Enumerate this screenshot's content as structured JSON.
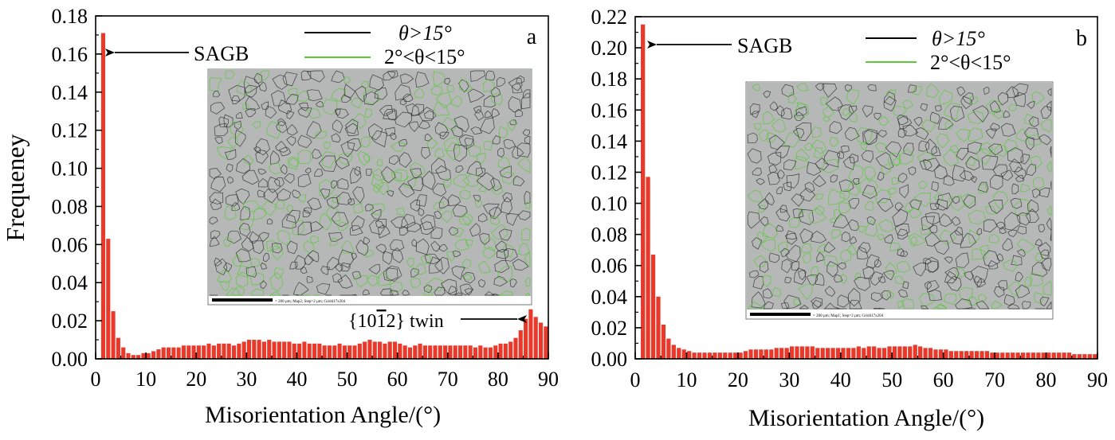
{
  "chart_data": [
    {
      "type": "bar",
      "panel_letter": "a",
      "xlabel": "Misorientation Angle/(°)",
      "ylabel": "Frequeney",
      "xlim": [
        0,
        90
      ],
      "ylim": [
        0,
        0.18
      ],
      "xticks": [
        "0",
        "10",
        "20",
        "30",
        "40",
        "50",
        "60",
        "70",
        "80",
        "90"
      ],
      "yticks": [
        "0.00",
        "0.02",
        "0.04",
        "0.06",
        "0.08",
        "0.10",
        "0.12",
        "0.14",
        "0.16",
        "0.18"
      ],
      "bar_color": "#e8392a",
      "bin_width": 1,
      "x": [
        2,
        3,
        4,
        5,
        6,
        7,
        8,
        9,
        10,
        11,
        12,
        13,
        14,
        15,
        16,
        17,
        18,
        19,
        20,
        21,
        22,
        23,
        24,
        25,
        26,
        27,
        28,
        29,
        30,
        31,
        32,
        33,
        34,
        35,
        36,
        37,
        38,
        39,
        40,
        41,
        42,
        43,
        44,
        45,
        46,
        47,
        48,
        49,
        50,
        51,
        52,
        53,
        54,
        55,
        56,
        57,
        58,
        59,
        60,
        61,
        62,
        63,
        64,
        65,
        66,
        67,
        68,
        69,
        70,
        71,
        72,
        73,
        74,
        75,
        76,
        77,
        78,
        79,
        80,
        81,
        82,
        83,
        84,
        85,
        86,
        87,
        88,
        89,
        90
      ],
      "values": [
        0.171,
        0.063,
        0.025,
        0.011,
        0.006,
        0.003,
        0.002,
        0.002,
        0.003,
        0.003,
        0.004,
        0.005,
        0.006,
        0.006,
        0.006,
        0.006,
        0.007,
        0.007,
        0.007,
        0.007,
        0.007,
        0.008,
        0.007,
        0.008,
        0.008,
        0.008,
        0.007,
        0.008,
        0.009,
        0.01,
        0.01,
        0.01,
        0.009,
        0.01,
        0.009,
        0.009,
        0.009,
        0.009,
        0.008,
        0.008,
        0.009,
        0.008,
        0.008,
        0.008,
        0.007,
        0.007,
        0.007,
        0.008,
        0.007,
        0.007,
        0.007,
        0.008,
        0.009,
        0.01,
        0.009,
        0.009,
        0.008,
        0.009,
        0.009,
        0.008,
        0.007,
        0.006,
        0.007,
        0.008,
        0.007,
        0.007,
        0.007,
        0.007,
        0.007,
        0.007,
        0.007,
        0.007,
        0.007,
        0.007,
        0.006,
        0.007,
        0.006,
        0.006,
        0.007,
        0.008,
        0.008,
        0.009,
        0.011,
        0.015,
        0.021,
        0.026,
        0.022,
        0.019,
        0.017
      ],
      "annotations": [
        {
          "text": "SAGB"
        },
        {
          "text_pre": "{10",
          "text_bar": "1",
          "text_post": "2} twin"
        }
      ],
      "legend": [
        {
          "label": "θ>15°",
          "color": "#000000"
        },
        {
          "label": "2°<θ<15°",
          "color": "#5cc93b"
        }
      ],
      "inset": {
        "caption": "= 200 µm; Map2; Step=2 µm; Grid417x204"
      }
    },
    {
      "type": "bar",
      "panel_letter": "b",
      "xlabel": "Misorientation Angle/(°)",
      "ylabel": "",
      "xlim": [
        0,
        90
      ],
      "ylim": [
        0,
        0.22
      ],
      "xticks": [
        "0",
        "10",
        "20",
        "30",
        "40",
        "50",
        "60",
        "70",
        "80",
        "90"
      ],
      "yticks": [
        "0.00",
        "0.02",
        "0.04",
        "0.06",
        "0.08",
        "0.10",
        "0.12",
        "0.14",
        "0.16",
        "0.18",
        "0.20",
        "0.22"
      ],
      "bar_color": "#e8392a",
      "bin_width": 1,
      "x": [
        2,
        3,
        4,
        5,
        6,
        7,
        8,
        9,
        10,
        11,
        12,
        13,
        14,
        15,
        16,
        17,
        18,
        19,
        20,
        21,
        22,
        23,
        24,
        25,
        26,
        27,
        28,
        29,
        30,
        31,
        32,
        33,
        34,
        35,
        36,
        37,
        38,
        39,
        40,
        41,
        42,
        43,
        44,
        45,
        46,
        47,
        48,
        49,
        50,
        51,
        52,
        53,
        54,
        55,
        56,
        57,
        58,
        59,
        60,
        61,
        62,
        63,
        64,
        65,
        66,
        67,
        68,
        69,
        70,
        71,
        72,
        73,
        74,
        75,
        76,
        77,
        78,
        79,
        80,
        81,
        82,
        83,
        84,
        85,
        86,
        87,
        88,
        89,
        90
      ],
      "values": [
        0.215,
        0.117,
        0.067,
        0.04,
        0.022,
        0.013,
        0.009,
        0.007,
        0.006,
        0.005,
        0.004,
        0.004,
        0.004,
        0.004,
        0.004,
        0.004,
        0.004,
        0.004,
        0.004,
        0.004,
        0.005,
        0.006,
        0.006,
        0.006,
        0.006,
        0.006,
        0.007,
        0.007,
        0.007,
        0.008,
        0.008,
        0.008,
        0.008,
        0.008,
        0.007,
        0.007,
        0.007,
        0.007,
        0.007,
        0.007,
        0.007,
        0.007,
        0.008,
        0.007,
        0.008,
        0.008,
        0.007,
        0.007,
        0.008,
        0.008,
        0.008,
        0.008,
        0.008,
        0.009,
        0.008,
        0.007,
        0.007,
        0.006,
        0.006,
        0.006,
        0.005,
        0.005,
        0.005,
        0.005,
        0.005,
        0.005,
        0.005,
        0.005,
        0.004,
        0.004,
        0.004,
        0.004,
        0.004,
        0.004,
        0.004,
        0.004,
        0.004,
        0.004,
        0.004,
        0.004,
        0.004,
        0.004,
        0.004,
        0.004,
        0.003,
        0.003,
        0.003,
        0.003,
        0.003
      ],
      "annotations": [
        {
          "text": "SAGB"
        }
      ],
      "legend": [
        {
          "label": "θ>15°",
          "color": "#000000"
        },
        {
          "label": "2°<θ<15°",
          "color": "#5cc93b"
        }
      ],
      "inset": {
        "caption": "= 200 µm; Map1; Step=2 µm; Grid417x204"
      }
    }
  ]
}
